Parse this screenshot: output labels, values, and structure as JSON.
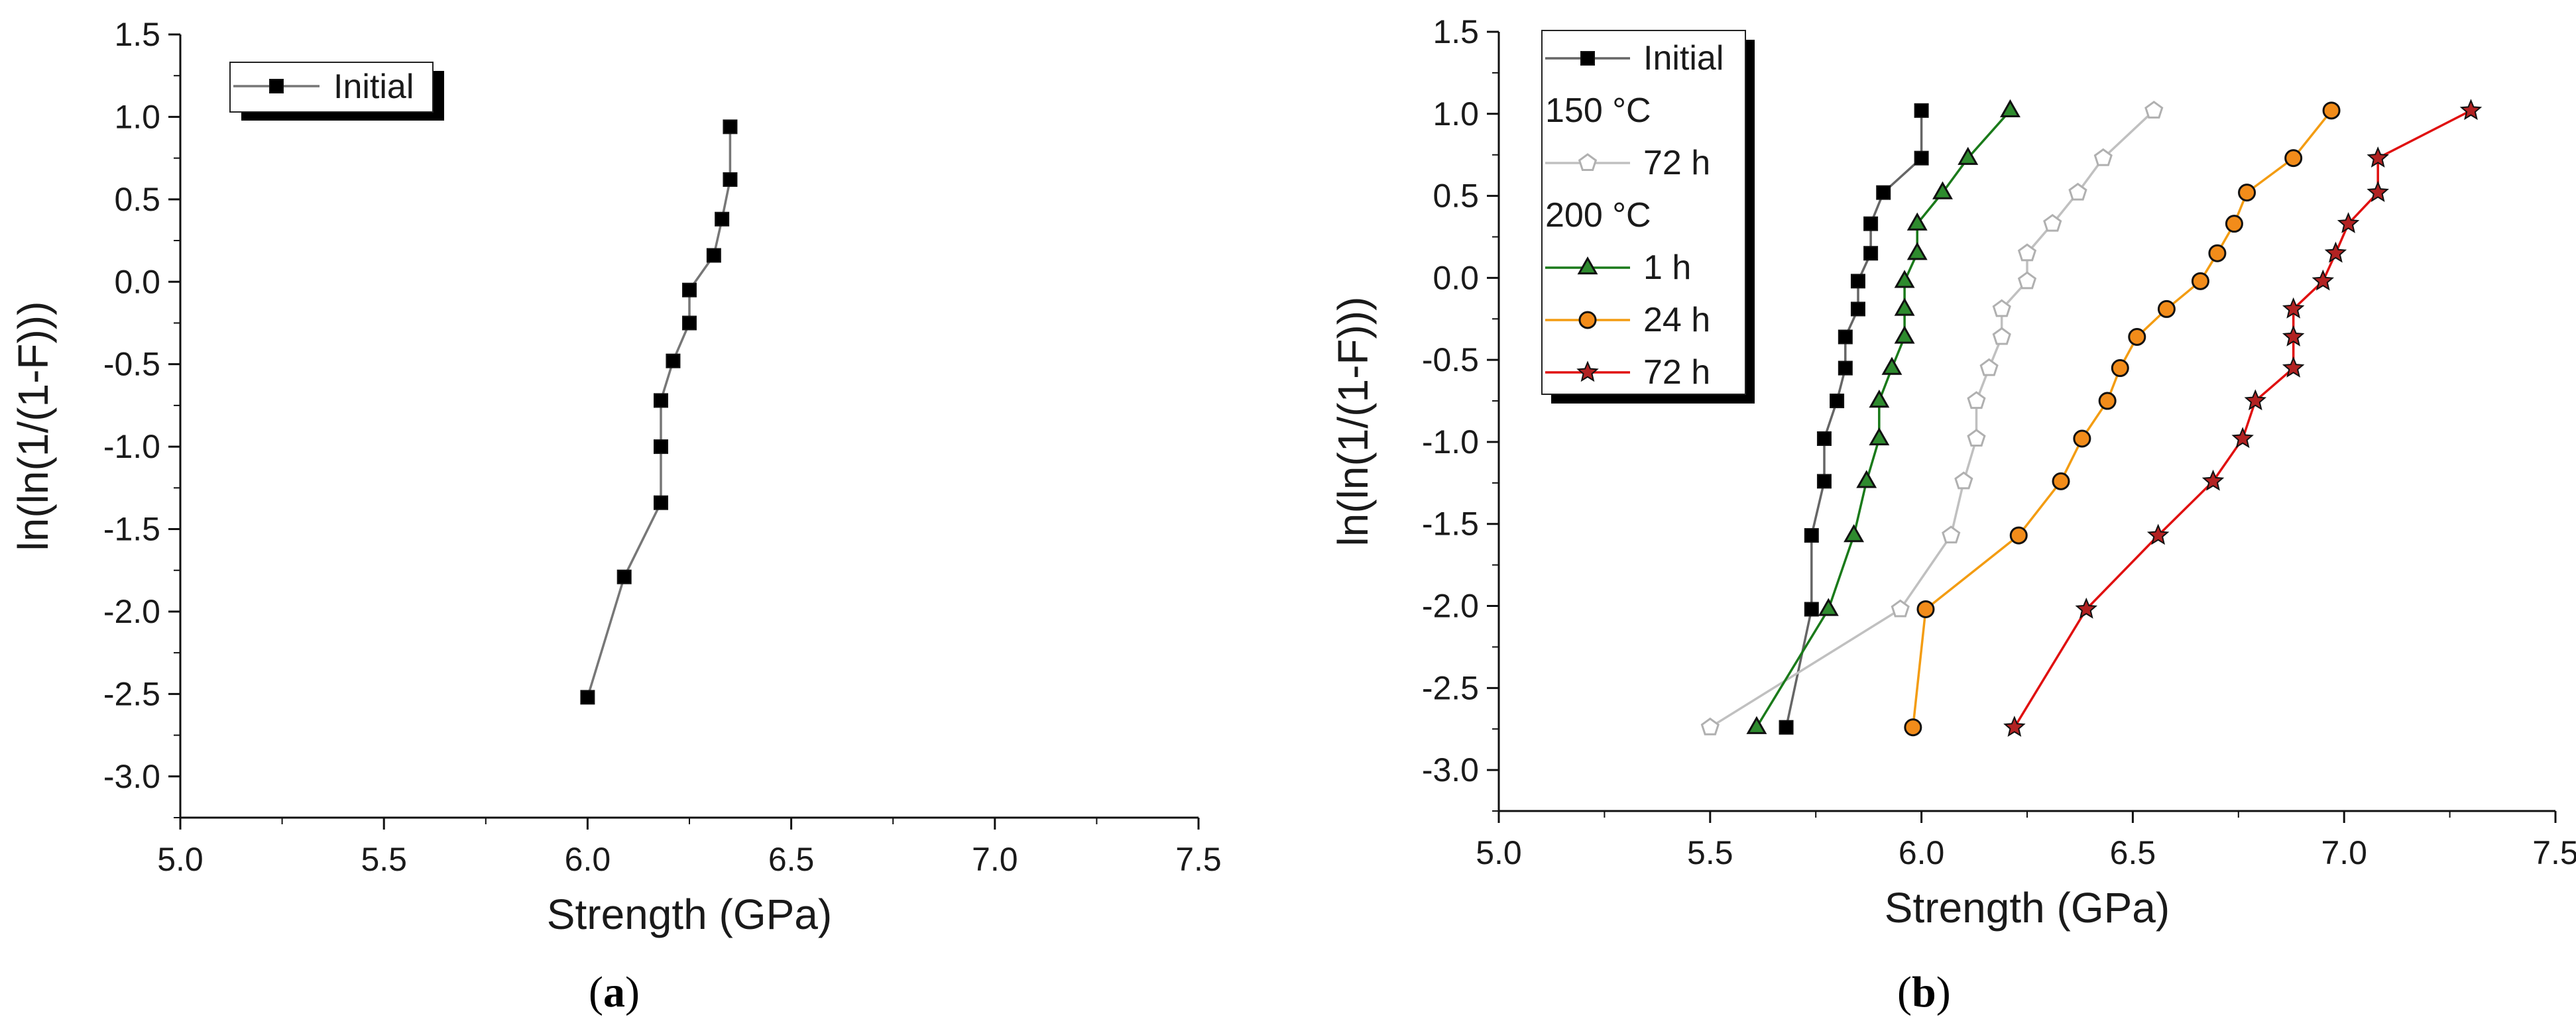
{
  "panels": [
    {
      "id": "a",
      "label": "a"
    },
    {
      "id": "b",
      "label": "b"
    }
  ],
  "chart_data": [
    {
      "type": "line",
      "panel": "a",
      "title": "",
      "xlabel": "Strength (GPa)",
      "ylabel": "ln(ln(1/(1-F)))",
      "xlim": [
        5.0,
        7.5
      ],
      "ylim": [
        -3.25,
        1.5
      ],
      "x_ticks": [
        "5.0",
        "5.5",
        "6.0",
        "6.5",
        "7.0",
        "7.5"
      ],
      "y_ticks": [
        "1.5",
        "1.0",
        "0.5",
        "0.0",
        "-0.5",
        "-1.0",
        "-1.5",
        "-2.0",
        "-2.5",
        "-3.0"
      ],
      "grid": false,
      "legend": {
        "position": "top-left"
      },
      "series": [
        {
          "name": "Initial",
          "color": "#777777",
          "marker": "square",
          "marker_fill": "#000000",
          "points": [
            [
              6.0,
              -2.52
            ],
            [
              6.09,
              -1.79
            ],
            [
              6.18,
              -1.34
            ],
            [
              6.18,
              -1.0
            ],
            [
              6.18,
              -0.72
            ],
            [
              6.21,
              -0.48
            ],
            [
              6.25,
              -0.25
            ],
            [
              6.25,
              -0.05
            ],
            [
              6.31,
              0.16
            ],
            [
              6.33,
              0.38
            ],
            [
              6.35,
              0.62
            ],
            [
              6.35,
              0.94
            ]
          ]
        }
      ]
    },
    {
      "type": "line",
      "panel": "b",
      "title": "",
      "xlabel": "Strength (GPa)",
      "ylabel": "ln(ln(1/(1-F)))",
      "xlim": [
        5.0,
        7.5
      ],
      "ylim": [
        -3.25,
        1.5
      ],
      "x_ticks": [
        "5.0",
        "5.5",
        "6.0",
        "6.5",
        "7.0",
        "7.5"
      ],
      "y_ticks": [
        "1.5",
        "1.0",
        "0.5",
        "0.0",
        "-0.5",
        "-1.0",
        "-1.5",
        "-2.0",
        "-2.5",
        "-3.0"
      ],
      "grid": false,
      "legend": {
        "position": "top-left"
      },
      "legend_entries": [
        {
          "text": "Initial",
          "series": 0
        },
        {
          "text": "150 °C",
          "series": null
        },
        {
          "text": "72 h",
          "series": 1
        },
        {
          "text": "200 °C",
          "series": null
        },
        {
          "text": "1 h",
          "series": 2
        },
        {
          "text": "24 h",
          "series": 3
        },
        {
          "text": "72 h",
          "series": 4
        }
      ],
      "series": [
        {
          "name": "Initial",
          "color": "#666666",
          "marker": "square",
          "marker_fill": "#000000",
          "points": [
            [
              5.68,
              -2.74
            ],
            [
              5.74,
              -2.02
            ],
            [
              5.74,
              -1.57
            ],
            [
              5.77,
              -1.24
            ],
            [
              5.77,
              -0.98
            ],
            [
              5.8,
              -0.75
            ],
            [
              5.82,
              -0.55
            ],
            [
              5.82,
              -0.36
            ],
            [
              5.85,
              -0.19
            ],
            [
              5.85,
              -0.02
            ],
            [
              5.88,
              0.15
            ],
            [
              5.88,
              0.33
            ],
            [
              5.91,
              0.52
            ],
            [
              6.0,
              0.73
            ],
            [
              6.0,
              1.02
            ]
          ]
        },
        {
          "name": "72 h",
          "color": "#c0c0c0",
          "marker": "pentagon",
          "marker_fill": "#ffffff",
          "marker_stroke": "#b0b0b0",
          "points": [
            [
              5.5,
              -2.74
            ],
            [
              5.95,
              -2.02
            ],
            [
              6.07,
              -1.57
            ],
            [
              6.1,
              -1.24
            ],
            [
              6.13,
              -0.98
            ],
            [
              6.13,
              -0.75
            ],
            [
              6.16,
              -0.55
            ],
            [
              6.19,
              -0.36
            ],
            [
              6.19,
              -0.19
            ],
            [
              6.25,
              -0.02
            ],
            [
              6.25,
              0.15
            ],
            [
              6.31,
              0.33
            ],
            [
              6.37,
              0.52
            ],
            [
              6.43,
              0.73
            ],
            [
              6.55,
              1.02
            ]
          ]
        },
        {
          "name": "1 h",
          "color": "#1a7a1a",
          "marker": "triangle",
          "marker_fill": "#2e8b2e",
          "points": [
            [
              5.61,
              -2.74
            ],
            [
              5.78,
              -2.02
            ],
            [
              5.84,
              -1.57
            ],
            [
              5.87,
              -1.24
            ],
            [
              5.9,
              -0.98
            ],
            [
              5.9,
              -0.75
            ],
            [
              5.93,
              -0.55
            ],
            [
              5.96,
              -0.36
            ],
            [
              5.96,
              -0.19
            ],
            [
              5.96,
              -0.02
            ],
            [
              5.99,
              0.15
            ],
            [
              5.99,
              0.33
            ],
            [
              6.05,
              0.52
            ],
            [
              6.11,
              0.73
            ],
            [
              6.21,
              1.02
            ]
          ]
        },
        {
          "name": "24 h",
          "color": "#f39c12",
          "marker": "circle",
          "marker_fill": "#f28c1a",
          "points": [
            [
              5.98,
              -2.74
            ],
            [
              6.01,
              -2.02
            ],
            [
              6.23,
              -1.57
            ],
            [
              6.33,
              -1.24
            ],
            [
              6.38,
              -0.98
            ],
            [
              6.44,
              -0.75
            ],
            [
              6.47,
              -0.55
            ],
            [
              6.51,
              -0.36
            ],
            [
              6.58,
              -0.19
            ],
            [
              6.66,
              -0.02
            ],
            [
              6.7,
              0.15
            ],
            [
              6.74,
              0.33
            ],
            [
              6.77,
              0.52
            ],
            [
              6.88,
              0.73
            ],
            [
              6.97,
              1.02
            ]
          ]
        },
        {
          "name": "72 h",
          "color": "#e01010",
          "marker": "star",
          "marker_fill": "#b22222",
          "points": [
            [
              6.22,
              -2.74
            ],
            [
              6.39,
              -2.02
            ],
            [
              6.56,
              -1.57
            ],
            [
              6.69,
              -1.24
            ],
            [
              6.76,
              -0.98
            ],
            [
              6.79,
              -0.75
            ],
            [
              6.88,
              -0.55
            ],
            [
              6.88,
              -0.36
            ],
            [
              6.88,
              -0.19
            ],
            [
              6.95,
              -0.02
            ],
            [
              6.98,
              0.15
            ],
            [
              7.01,
              0.33
            ],
            [
              7.08,
              0.52
            ],
            [
              7.08,
              0.73
            ],
            [
              7.3,
              1.02
            ]
          ]
        }
      ]
    }
  ]
}
